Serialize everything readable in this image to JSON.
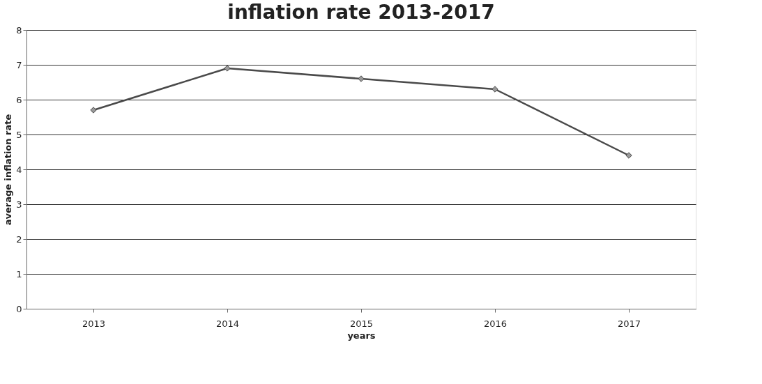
{
  "chart_data": {
    "type": "line",
    "title": "inflation rate 2013-2017",
    "xlabel": "years",
    "ylabel": "average inflation rate",
    "categories": [
      "2013",
      "2014",
      "2015",
      "2016",
      "2017"
    ],
    "series": [
      {
        "color": "#4a4a4a",
        "values": [
          5.7,
          6.9,
          6.6,
          6.3,
          4.4
        ]
      }
    ],
    "ylim": [
      0,
      8
    ],
    "yticks": [
      0,
      1,
      2,
      3,
      4,
      5,
      6,
      7,
      8
    ],
    "grid": "y",
    "marker": "diamond",
    "line_style": "solid"
  }
}
